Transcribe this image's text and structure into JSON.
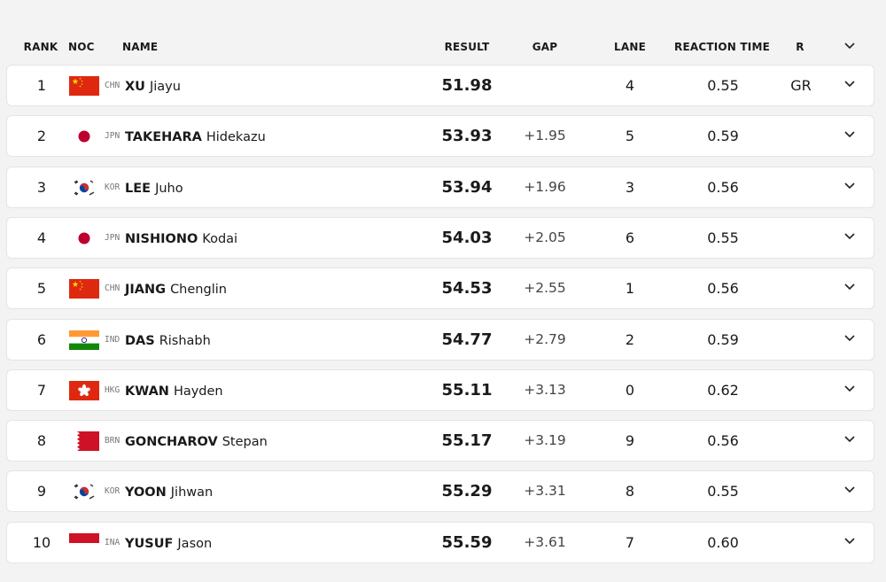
{
  "table": {
    "columns": [
      "RANK",
      "NOC",
      "NAME",
      "RESULT",
      "GAP",
      "LANE",
      "REACTION TIME",
      "R"
    ],
    "rows": [
      {
        "rank": "1",
        "noc": "CHN",
        "surname": "XU",
        "given": "Jiayu",
        "result": "51.98",
        "lane": "4",
        "reaction": "0.55",
        "record": "GR"
      },
      {
        "rank": "2",
        "noc": "JPN",
        "surname": "TAKEHARA",
        "given": "Hidekazu",
        "result": "53.93",
        "gap": "+1.95",
        "lane": "5",
        "reaction": "0.59"
      },
      {
        "rank": "3",
        "noc": "KOR",
        "surname": "LEE",
        "given": "Juho",
        "result": "53.94",
        "gap": "+1.96",
        "lane": "3",
        "reaction": "0.56"
      },
      {
        "rank": "4",
        "noc": "JPN",
        "surname": "NISHIONO",
        "given": "Kodai",
        "result": "54.03",
        "gap": "+2.05",
        "lane": "6",
        "reaction": "0.55"
      },
      {
        "rank": "5",
        "noc": "CHN",
        "surname": "JIANG",
        "given": "Chenglin",
        "result": "54.53",
        "gap": "+2.55",
        "lane": "1",
        "reaction": "0.56"
      },
      {
        "rank": "6",
        "noc": "IND",
        "surname": "DAS",
        "given": "Rishabh",
        "result": "54.77",
        "gap": "+2.79",
        "lane": "2",
        "reaction": "0.59"
      },
      {
        "rank": "7",
        "noc": "HKG",
        "surname": "KWAN",
        "given": "Hayden",
        "result": "55.11",
        "gap": "+3.13",
        "lane": "0",
        "reaction": "0.62"
      },
      {
        "rank": "8",
        "noc": "BRN",
        "surname": "GONCHAROV",
        "given": "Stepan",
        "result": "55.17",
        "gap": "+3.19",
        "lane": "9",
        "reaction": "0.56"
      },
      {
        "rank": "9",
        "noc": "KOR",
        "surname": "YOON",
        "given": "Jihwan",
        "result": "55.29",
        "gap": "+3.31",
        "lane": "8",
        "reaction": "0.55"
      },
      {
        "rank": "10",
        "noc": "INA",
        "surname": "YUSUF",
        "given": "Jason",
        "result": "55.59",
        "gap": "+3.61",
        "lane": "7",
        "reaction": "0.60"
      }
    ]
  }
}
